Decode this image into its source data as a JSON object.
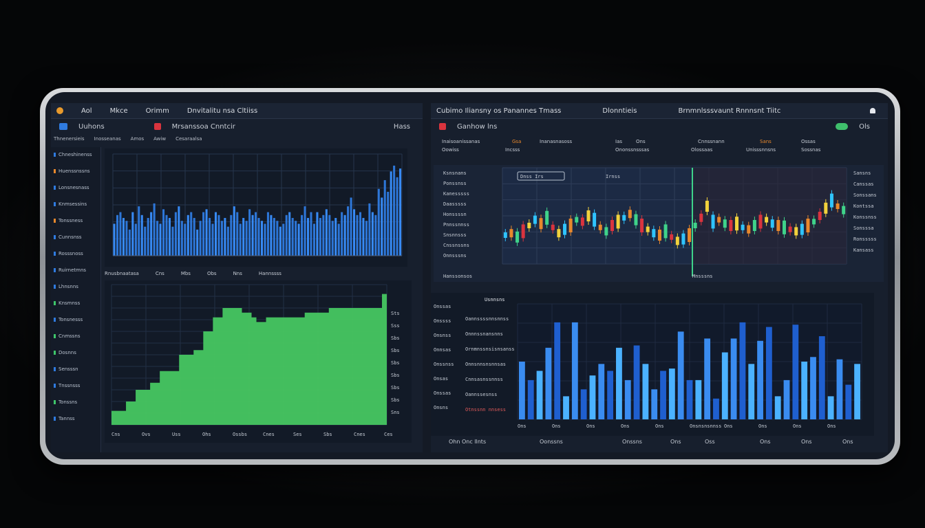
{
  "left_window": {
    "menu": [
      "Aol",
      "Mkce",
      "Orimm",
      "Dnvitalitu nsa Cltiiss"
    ],
    "sub_title_1": "Uuhons",
    "sub_title_2": "Mrsanssoa Cnntcir",
    "sub_right": "Hass",
    "tabs": [
      "Thnenersieis",
      "Inosseanas",
      "Amos",
      "Awiw",
      "Cesaraalsa"
    ],
    "sidebar_items": [
      "Chneshinenss",
      "Huenssnssns",
      "Lonsnesnass",
      "Knmsessins",
      "Tonssness",
      "Cunnsnss",
      "Rosssnoss",
      "Ruirnetmns",
      "Lhnsnns",
      "Knsmnss",
      "Tonsnesss",
      "Cnmssns",
      "Dosnns",
      "Sensssn",
      "Tnssnsss",
      "Tonssns",
      "Tannss"
    ],
    "mid_labels": [
      "Rnusbnaatasa",
      "Cns",
      "Mbs",
      "Obs",
      "Nns",
      "Hannssss"
    ],
    "bottom_x_labels": [
      "Cns",
      "Ovs",
      "Uss",
      "Ohs",
      "Ossbs",
      "Cnes",
      "Ses",
      "Sbs",
      "Cnes",
      "Ces"
    ],
    "bottom_y_labels": [
      "Sts",
      "Sss",
      "Sbs",
      "Sbs",
      "Sbs",
      "Sbs",
      "Sbs",
      "Sbs",
      "Sns"
    ]
  },
  "right_window": {
    "menu": [
      "Cubimo Iliansny os Panannes Tmass",
      "Dlonntieis",
      "Brnmnlsssvaunt Rnnnsnt Tiitc"
    ],
    "sub_title": "Ganhow lns",
    "status_right": "Ols",
    "header_row": [
      "Inaisoanissanas",
      "Gsa",
      "Inanasnasoss",
      "Ias",
      "Ons",
      "Cnnssnann",
      "Sans",
      "Ossas"
    ],
    "header_row2": [
      "Oowiss",
      "Incsss",
      "Ononssnsssas",
      "Olossaas",
      "Unisssnnsns",
      "Sossnas"
    ],
    "candle_left_labels": [
      "Ksnsnans",
      "Ponssnss",
      "Kanesssss",
      "Daasssss",
      "Honssssn",
      "Pnnssnnss",
      "Snsnnsss",
      "Cnssnssns",
      "Onnsssns"
    ],
    "candle_right_labels": [
      "Sansns",
      "Canssas",
      "Sonssans",
      "Kontssa",
      "Konssnss",
      "Sonsssa",
      "Ronsssss",
      "Kansass"
    ],
    "box_labels": [
      "Dnss Irs",
      "Irnss"
    ],
    "candle_bottom_left": "Hanssonsos",
    "candle_bottom_right": "Mnsssns",
    "bars_title": "Usnnsns",
    "bars_left_labels": [
      "Onssas",
      "Onssss",
      "Onsnss",
      "Onnsas",
      "Onssnss",
      "Onsas",
      "Onssas",
      "Onsns"
    ],
    "bars_annotations": [
      "Oannssssnnsnnss",
      "Onnnssnansnns",
      "Ornmnssnsisnsanss",
      "Onnsnnsnsnnsas",
      "Cnnsasnssnnss",
      "Oannssesnss",
      "Otnssnn nnsess"
    ],
    "bars_x_labels": [
      "Ons",
      "Ons",
      "Ons",
      "Ons",
      "Ons",
      "Onsnsnsnnss",
      "Ons",
      "Ons",
      "Ons",
      "Ons"
    ],
    "footer": [
      "Ohn Onc llnts",
      "Oonssns",
      "Onssns",
      "Ons",
      "Oss",
      "Ons",
      "Ons",
      "Ons"
    ]
  },
  "chart_data": [
    {
      "type": "bar",
      "values": [
        22,
        28,
        30,
        26,
        24,
        18,
        30,
        22,
        34,
        28,
        20,
        26,
        30,
        36,
        24,
        22,
        32,
        28,
        26,
        20,
        30,
        34,
        24,
        22,
        28,
        30,
        26,
        18,
        24,
        30,
        32,
        26,
        22,
        30,
        28,
        24,
        26,
        20,
        28,
        34,
        30,
        22,
        26,
        24,
        32,
        28,
        30,
        26,
        24,
        22,
        30,
        28,
        26,
        24,
        20,
        22,
        28,
        30,
        26,
        24,
        22,
        28,
        34,
        26,
        30,
        22,
        30,
        26,
        28,
        32,
        28,
        24,
        26,
        22,
        30,
        28,
        34,
        40,
        32,
        28,
        30,
        26,
        24,
        36,
        30,
        28,
        46,
        40,
        52,
        44,
        58,
        62,
        54,
        60
      ],
      "ylim": [
        0,
        70
      ],
      "grid": true,
      "colors": [
        "#2f7be0"
      ]
    },
    {
      "type": "area",
      "values": [
        6,
        6,
        6,
        10,
        10,
        15,
        15,
        15,
        18,
        18,
        23,
        23,
        23,
        23,
        30,
        30,
        30,
        32,
        32,
        40,
        40,
        46,
        46,
        50,
        50,
        50,
        50,
        48,
        48,
        46,
        44,
        44,
        46,
        46,
        46,
        46,
        46,
        46,
        46,
        46,
        48,
        48,
        48,
        48,
        48,
        50,
        50,
        50,
        50,
        50,
        50,
        50,
        50,
        50,
        50,
        50,
        56,
        56
      ],
      "ylim": [
        0,
        60
      ],
      "grid": true,
      "colors": [
        "#47c761"
      ]
    },
    {
      "type": "line",
      "series_values": [
        30,
        32,
        28,
        34,
        40,
        46,
        42,
        48,
        38,
        32,
        36,
        40,
        46,
        44,
        50,
        46,
        38,
        34,
        40,
        44,
        48,
        52,
        46,
        40,
        36,
        32,
        30,
        34,
        28,
        24,
        26,
        30,
        40,
        48,
        60,
        44,
        46,
        42,
        40,
        42,
        38,
        36,
        40,
        44,
        46,
        42,
        40,
        38,
        36,
        34,
        36,
        40,
        44,
        50,
        58,
        66,
        60,
        56
      ],
      "ylim": [
        0,
        100
      ],
      "grid": true,
      "colors": [
        "#2fc4ff",
        "#e8882c",
        "#3fd38a",
        "#d9343e",
        "#f2d23c"
      ]
    },
    {
      "type": "bar",
      "values": [
        50,
        34,
        42,
        62,
        84,
        20,
        84,
        26,
        38,
        48,
        42,
        62,
        34,
        64,
        48,
        26,
        42,
        44,
        76,
        34,
        34,
        70,
        18,
        58,
        70,
        84,
        48,
        68,
        80,
        20,
        34,
        82,
        50,
        54,
        72,
        20,
        52,
        30,
        48
      ],
      "ylim": [
        0,
        100
      ],
      "grid": true,
      "colors": [
        "#3a8cf0",
        "#1f5fcf",
        "#4bb2ff"
      ]
    }
  ]
}
